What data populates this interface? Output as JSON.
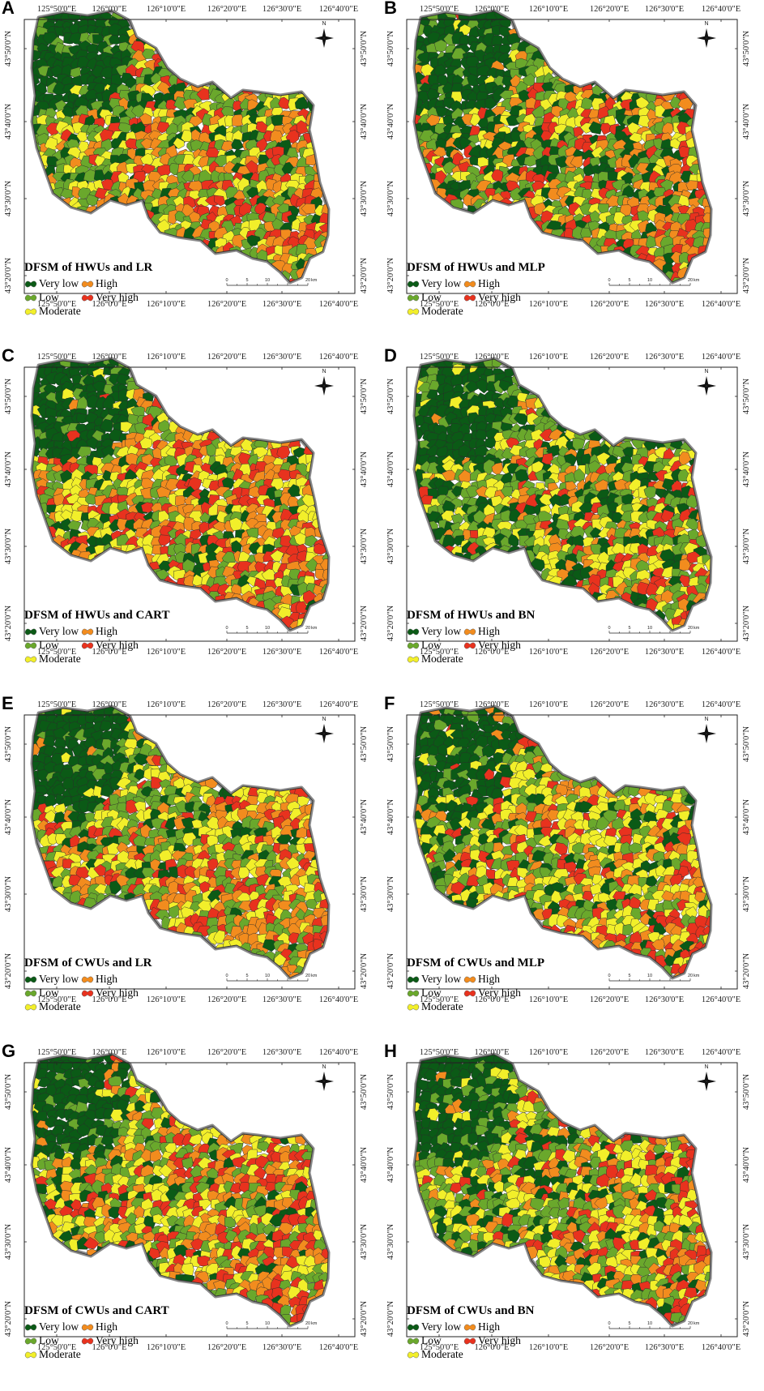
{
  "legend_classes": [
    {
      "label": "Very low",
      "color": "#0b5a16"
    },
    {
      "label": "High",
      "color": "#f28c1e"
    },
    {
      "label": "Low",
      "color": "#6aa82c"
    },
    {
      "label": "Very high",
      "color": "#e8321e"
    },
    {
      "label": "Moderate",
      "color": "#f2ef2a"
    }
  ],
  "longitude_ticks": [
    "125°50'0\"E",
    "126°0'0\"E",
    "126°10'0\"E",
    "126°20'0\"E",
    "126°30'0\"E",
    "126°40'0\"E"
  ],
  "latitude_ticks": [
    "43°50'0\"N",
    "43°40'0\"N",
    "43°30'0\"N",
    "43°20'0\"N"
  ],
  "scale_bar": {
    "labels": [
      "0",
      "5",
      "10",
      "20"
    ],
    "unit": "km"
  },
  "north_label": "N",
  "panels": [
    {
      "letter": "A",
      "title": "DFSM of HWUs and LR",
      "mix": [
        0.16,
        0.3,
        0.22,
        0.18,
        0.14
      ]
    },
    {
      "letter": "B",
      "title": "DFSM of HWUs and MLP",
      "mix": [
        0.24,
        0.3,
        0.16,
        0.16,
        0.14
      ]
    },
    {
      "letter": "C",
      "title": "DFSM of HWUs and CART",
      "mix": [
        0.14,
        0.22,
        0.24,
        0.2,
        0.2
      ]
    },
    {
      "letter": "D",
      "title": "DFSM of HWUs and BN",
      "mix": [
        0.3,
        0.32,
        0.2,
        0.1,
        0.08
      ]
    },
    {
      "letter": "E",
      "title": "DFSM of CWUs and LR",
      "mix": [
        0.12,
        0.28,
        0.24,
        0.2,
        0.16
      ]
    },
    {
      "letter": "F",
      "title": "DFSM of CWUs and MLP",
      "mix": [
        0.16,
        0.24,
        0.28,
        0.16,
        0.16
      ]
    },
    {
      "letter": "G",
      "title": "DFSM of CWUs and CART",
      "mix": [
        0.1,
        0.22,
        0.26,
        0.2,
        0.22
      ]
    },
    {
      "letter": "H",
      "title": "DFSM of CWUs and BN",
      "mix": [
        0.16,
        0.28,
        0.26,
        0.16,
        0.14
      ]
    }
  ]
}
